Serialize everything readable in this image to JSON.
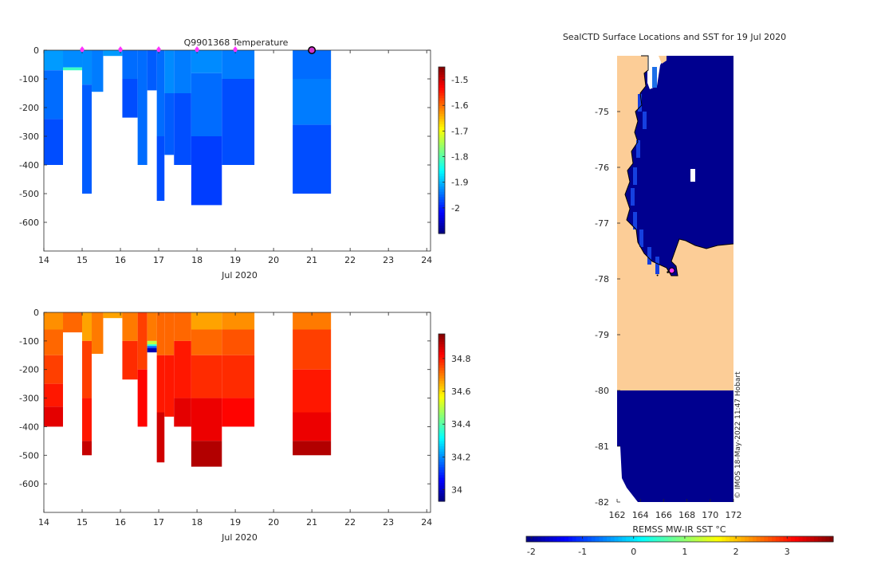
{
  "chart_data": [
    {
      "type": "heatmap",
      "title": "Q9901368  Temperature",
      "variable": "temperature",
      "xlabel": "Jul 2020",
      "ylabel": "",
      "xlim": [
        14,
        24.1
      ],
      "ylim": [
        -700,
        0
      ],
      "xticks": [
        14,
        15,
        16,
        17,
        18,
        19,
        20,
        21,
        22,
        23,
        24
      ],
      "yticks": [
        0,
        -100,
        -200,
        -300,
        -400,
        -500,
        -600
      ],
      "colorbar": {
        "min": -2.1,
        "max": -1.45,
        "ticks": [
          -1.5,
          -1.6,
          -1.7,
          -1.8,
          -1.9,
          -2
        ]
      },
      "profile_markers": [
        15,
        16,
        17,
        18,
        19
      ],
      "current_marker": 21,
      "profiles": [
        {
          "x0": 14.0,
          "x1": 14.5,
          "dmax": 400,
          "layers": [
            [
              0,
              70,
              -1.92
            ],
            [
              70,
              240,
              -1.95
            ],
            [
              240,
              400,
              -1.97
            ]
          ]
        },
        {
          "x0": 14.5,
          "x1": 15.0,
          "dmax": 70,
          "layers": [
            [
              0,
              60,
              -1.93
            ],
            [
              60,
              70,
              -1.82
            ]
          ]
        },
        {
          "x0": 15.0,
          "x1": 15.25,
          "dmax": 500,
          "layers": [
            [
              0,
              120,
              -1.93
            ],
            [
              120,
              500,
              -1.96
            ]
          ]
        },
        {
          "x0": 15.25,
          "x1": 15.55,
          "dmax": 145,
          "layers": [
            [
              0,
              145,
              -1.94
            ]
          ]
        },
        {
          "x0": 15.55,
          "x1": 16.05,
          "dmax": 20,
          "layers": [
            [
              0,
              20,
              -1.92
            ]
          ]
        },
        {
          "x0": 16.05,
          "x1": 16.45,
          "dmax": 235,
          "layers": [
            [
              0,
              100,
              -1.95
            ],
            [
              100,
              235,
              -1.97
            ]
          ]
        },
        {
          "x0": 16.45,
          "x1": 16.7,
          "dmax": 400,
          "layers": [
            [
              0,
              400,
              -1.95
            ]
          ]
        },
        {
          "x0": 16.7,
          "x1": 16.95,
          "dmax": 140,
          "layers": [
            [
              0,
              140,
              -1.96
            ]
          ]
        },
        {
          "x0": 16.95,
          "x1": 17.15,
          "dmax": 525,
          "layers": [
            [
              0,
              300,
              -1.95
            ],
            [
              300,
              525,
              -1.97
            ]
          ]
        },
        {
          "x0": 17.15,
          "x1": 17.4,
          "dmax": 365,
          "layers": [
            [
              0,
              150,
              -1.93
            ],
            [
              150,
              365,
              -1.96
            ]
          ]
        },
        {
          "x0": 17.4,
          "x1": 17.85,
          "dmax": 400,
          "layers": [
            [
              0,
              150,
              -1.94
            ],
            [
              150,
              400,
              -1.97
            ]
          ]
        },
        {
          "x0": 17.85,
          "x1": 18.65,
          "dmax": 540,
          "layers": [
            [
              0,
              80,
              -1.93
            ],
            [
              80,
              300,
              -1.95
            ],
            [
              300,
              540,
              -1.98
            ]
          ]
        },
        {
          "x0": 18.65,
          "x1": 19.5,
          "dmax": 400,
          "layers": [
            [
              0,
              100,
              -1.94
            ],
            [
              100,
              400,
              -1.97
            ]
          ]
        },
        {
          "x0": 20.5,
          "x1": 21.5,
          "dmax": 500,
          "layers": [
            [
              0,
              100,
              -1.95
            ],
            [
              100,
              260,
              -1.94
            ],
            [
              260,
              500,
              -1.97
            ]
          ]
        }
      ]
    },
    {
      "type": "heatmap",
      "title": "",
      "variable": "salinity",
      "xlabel": "Jul 2020",
      "ylabel": "",
      "xlim": [
        14,
        24.1
      ],
      "ylim": [
        -700,
        0
      ],
      "xticks": [
        14,
        15,
        16,
        17,
        18,
        19,
        20,
        21,
        22,
        23,
        24
      ],
      "yticks": [
        0,
        -100,
        -200,
        -300,
        -400,
        -500,
        -600
      ],
      "colorbar": {
        "min": 33.93,
        "max": 34.95,
        "ticks": [
          34.8,
          34.6,
          34.4,
          34.2,
          34
        ]
      },
      "profiles": [
        {
          "x0": 14.0,
          "x1": 14.5,
          "dmax": 400,
          "layers": [
            [
              0,
              60,
              34.68
            ],
            [
              60,
              150,
              34.72
            ],
            [
              150,
              250,
              34.76
            ],
            [
              250,
              330,
              34.8
            ],
            [
              330,
              400,
              34.85
            ]
          ]
        },
        {
          "x0": 14.5,
          "x1": 15.0,
          "dmax": 70,
          "layers": [
            [
              0,
              70,
              34.72
            ]
          ]
        },
        {
          "x0": 15.0,
          "x1": 15.25,
          "dmax": 500,
          "layers": [
            [
              0,
              100,
              34.66
            ],
            [
              100,
              300,
              34.76
            ],
            [
              300,
              450,
              34.8
            ],
            [
              450,
              500,
              34.88
            ]
          ]
        },
        {
          "x0": 15.25,
          "x1": 15.55,
          "dmax": 145,
          "layers": [
            [
              0,
              145,
              34.7
            ]
          ]
        },
        {
          "x0": 15.55,
          "x1": 16.05,
          "dmax": 20,
          "layers": [
            [
              0,
              20,
              34.66
            ]
          ]
        },
        {
          "x0": 16.05,
          "x1": 16.45,
          "dmax": 235,
          "layers": [
            [
              0,
              100,
              34.7
            ],
            [
              100,
              235,
              34.78
            ]
          ]
        },
        {
          "x0": 16.45,
          "x1": 16.7,
          "dmax": 400,
          "layers": [
            [
              0,
              200,
              34.76
            ],
            [
              200,
              400,
              34.82
            ]
          ]
        },
        {
          "x0": 16.7,
          "x1": 16.95,
          "dmax": 140,
          "layers": [
            [
              0,
              100,
              34.7
            ],
            [
              100,
              112,
              34.5
            ],
            [
              112,
              118,
              34.35
            ],
            [
              118,
              125,
              34.15
            ],
            [
              125,
              140,
              33.98
            ]
          ]
        },
        {
          "x0": 16.95,
          "x1": 17.15,
          "dmax": 525,
          "layers": [
            [
              0,
              150,
              34.72
            ],
            [
              150,
              350,
              34.8
            ],
            [
              350,
              525,
              34.87
            ]
          ]
        },
        {
          "x0": 17.15,
          "x1": 17.4,
          "dmax": 365,
          "layers": [
            [
              0,
              150,
              34.72
            ],
            [
              150,
              365,
              34.8
            ]
          ]
        },
        {
          "x0": 17.4,
          "x1": 17.85,
          "dmax": 400,
          "layers": [
            [
              0,
              100,
              34.72
            ],
            [
              100,
              300,
              34.8
            ],
            [
              300,
              400,
              34.85
            ]
          ]
        },
        {
          "x0": 17.85,
          "x1": 18.65,
          "dmax": 540,
          "layers": [
            [
              0,
              60,
              34.66
            ],
            [
              60,
              150,
              34.72
            ],
            [
              150,
              300,
              34.78
            ],
            [
              300,
              450,
              34.84
            ],
            [
              450,
              540,
              34.9
            ]
          ]
        },
        {
          "x0": 18.65,
          "x1": 19.5,
          "dmax": 400,
          "layers": [
            [
              0,
              60,
              34.68
            ],
            [
              60,
              150,
              34.74
            ],
            [
              150,
              300,
              34.78
            ],
            [
              300,
              400,
              34.82
            ]
          ]
        },
        {
          "x0": 20.5,
          "x1": 21.5,
          "dmax": 500,
          "layers": [
            [
              0,
              60,
              34.7
            ],
            [
              60,
              200,
              34.76
            ],
            [
              200,
              350,
              34.8
            ],
            [
              350,
              450,
              34.84
            ],
            [
              450,
              500,
              34.9
            ]
          ]
        }
      ]
    },
    {
      "type": "heatmap",
      "title": "SealCTD Surface Locations and SST for 19 Jul 2020",
      "xlabel": "",
      "ylabel": "",
      "xlim": [
        162,
        172
      ],
      "ylim": [
        -82,
        -74
      ],
      "xticks": [
        162,
        164,
        166,
        168,
        170,
        172
      ],
      "yticks": [
        -75,
        -76,
        -77,
        -78,
        -79,
        -80,
        -81,
        -82
      ],
      "colorbar": {
        "label": "REMSS MW-IR SST °C",
        "min": -2.1,
        "max": 3.9,
        "ticks": [
          -2,
          -1,
          0,
          1,
          2,
          3
        ]
      },
      "current_location": {
        "lon": 166.7,
        "lat": -77.85
      },
      "credit": "© IMOS 18-May-2022 11:47 Hobart"
    }
  ]
}
